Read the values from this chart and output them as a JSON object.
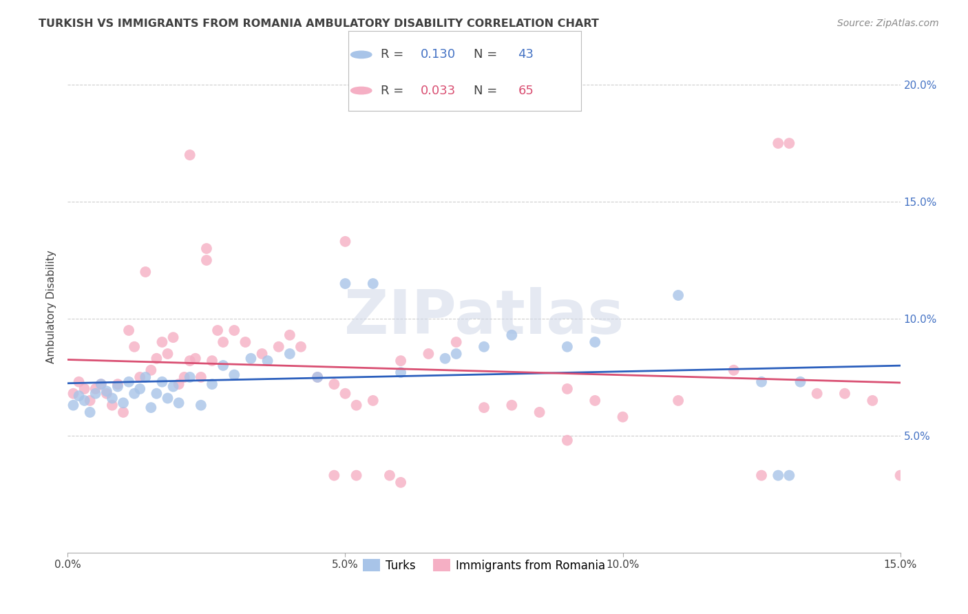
{
  "title": "TURKISH VS IMMIGRANTS FROM ROMANIA AMBULATORY DISABILITY CORRELATION CHART",
  "source": "Source: ZipAtlas.com",
  "ylabel": "Ambulatory Disability",
  "xlim": [
    0.0,
    0.15
  ],
  "ylim": [
    0.0,
    0.21
  ],
  "xticks": [
    0.0,
    0.05,
    0.1,
    0.15
  ],
  "xtick_labels": [
    "0.0%",
    "5.0%",
    "10.0%",
    "15.0%"
  ],
  "yticks": [
    0.05,
    0.1,
    0.15,
    0.2
  ],
  "ytick_labels": [
    "5.0%",
    "10.0%",
    "15.0%",
    "20.0%"
  ],
  "legend_blue_r_label": "R = ",
  "legend_blue_r_val": "0.130",
  "legend_blue_n_label": "  N = ",
  "legend_blue_n_val": "43",
  "legend_pink_r_label": "R = ",
  "legend_pink_r_val": "0.033",
  "legend_pink_n_label": "  N = ",
  "legend_pink_n_val": "65",
  "blue_scatter_color": "#a8c4e8",
  "pink_scatter_color": "#f5afc4",
  "blue_line_color": "#2b5fbd",
  "pink_line_color": "#d94f72",
  "axis_color": "#4472c4",
  "text_color": "#404040",
  "grid_color": "#cccccc",
  "watermark": "ZIPatlas",
  "turks_x": [
    0.001,
    0.002,
    0.003,
    0.004,
    0.005,
    0.006,
    0.007,
    0.008,
    0.009,
    0.01,
    0.011,
    0.012,
    0.013,
    0.014,
    0.015,
    0.016,
    0.017,
    0.018,
    0.019,
    0.02,
    0.022,
    0.024,
    0.026,
    0.028,
    0.03,
    0.033,
    0.036,
    0.04,
    0.045,
    0.05,
    0.055,
    0.06,
    0.068,
    0.07,
    0.075,
    0.08,
    0.09,
    0.095,
    0.11,
    0.125,
    0.128,
    0.13,
    0.132
  ],
  "turks_y": [
    0.063,
    0.067,
    0.065,
    0.06,
    0.068,
    0.072,
    0.069,
    0.066,
    0.071,
    0.064,
    0.073,
    0.068,
    0.07,
    0.075,
    0.062,
    0.068,
    0.073,
    0.066,
    0.071,
    0.064,
    0.075,
    0.063,
    0.072,
    0.08,
    0.076,
    0.083,
    0.082,
    0.085,
    0.075,
    0.115,
    0.115,
    0.077,
    0.083,
    0.085,
    0.088,
    0.093,
    0.088,
    0.09,
    0.11,
    0.073,
    0.033,
    0.033,
    0.073
  ],
  "romania_x": [
    0.001,
    0.002,
    0.003,
    0.004,
    0.005,
    0.006,
    0.007,
    0.008,
    0.009,
    0.01,
    0.011,
    0.012,
    0.013,
    0.014,
    0.015,
    0.016,
    0.017,
    0.018,
    0.019,
    0.02,
    0.021,
    0.022,
    0.023,
    0.024,
    0.025,
    0.026,
    0.028,
    0.03,
    0.032,
    0.035,
    0.038,
    0.04,
    0.042,
    0.045,
    0.048,
    0.05,
    0.052,
    0.055,
    0.058,
    0.06,
    0.065,
    0.07,
    0.075,
    0.08,
    0.085,
    0.09,
    0.095,
    0.1,
    0.11,
    0.12,
    0.125,
    0.128,
    0.13,
    0.135,
    0.14,
    0.145,
    0.15,
    0.048,
    0.052,
    0.05,
    0.022,
    0.025,
    0.027,
    0.06,
    0.09
  ],
  "romania_y": [
    0.068,
    0.073,
    0.07,
    0.065,
    0.07,
    0.072,
    0.068,
    0.063,
    0.072,
    0.06,
    0.095,
    0.088,
    0.075,
    0.12,
    0.078,
    0.083,
    0.09,
    0.085,
    0.092,
    0.072,
    0.075,
    0.082,
    0.083,
    0.075,
    0.125,
    0.082,
    0.09,
    0.095,
    0.09,
    0.085,
    0.088,
    0.093,
    0.088,
    0.075,
    0.072,
    0.068,
    0.063,
    0.065,
    0.033,
    0.082,
    0.085,
    0.09,
    0.062,
    0.063,
    0.06,
    0.07,
    0.065,
    0.058,
    0.065,
    0.078,
    0.033,
    0.175,
    0.175,
    0.068,
    0.068,
    0.065,
    0.033,
    0.033,
    0.033,
    0.133,
    0.17,
    0.13,
    0.095,
    0.03,
    0.048
  ]
}
